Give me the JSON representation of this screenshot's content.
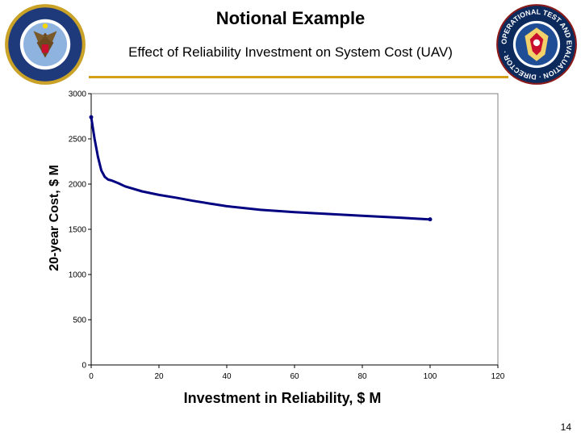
{
  "slide": {
    "title": "Notional Example",
    "subtitle": "Effect of Reliability Investment on System Cost (UAV)",
    "page_number": "14",
    "left_seal": "department-of-defense-seal",
    "right_seal": "operational-test-and-evaluation-director-seal",
    "right_seal_text": "OPERATIONAL TEST AND EVALUATION · DIRECTOR ·",
    "accent_color": "#d4a017"
  },
  "chart_data": {
    "type": "line",
    "title": "",
    "xlabel": "Investment in Reliability, $ M",
    "ylabel": "20-year Cost, $ M",
    "xlim": [
      0,
      120
    ],
    "ylim": [
      0,
      3000
    ],
    "x_ticks": [
      "0",
      "20",
      "40",
      "60",
      "80",
      "100",
      "120"
    ],
    "y_ticks": [
      "0",
      "500",
      "1000",
      "1500",
      "2000",
      "2500",
      "3000"
    ],
    "grid": false,
    "line_color": "#000080",
    "series": [
      {
        "x": [
          0,
          1,
          2,
          3,
          4,
          5,
          6,
          8,
          10,
          15,
          20,
          25,
          30,
          35,
          40,
          50,
          60,
          70,
          80,
          90,
          100
        ],
        "y": [
          2740,
          2500,
          2300,
          2150,
          2080,
          2050,
          2040,
          2010,
          1975,
          1920,
          1880,
          1850,
          1815,
          1785,
          1755,
          1715,
          1690,
          1670,
          1650,
          1630,
          1610
        ]
      }
    ]
  }
}
